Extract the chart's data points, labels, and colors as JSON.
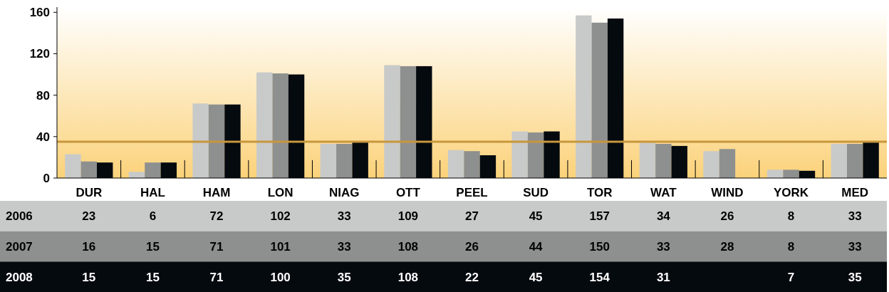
{
  "chart_data": {
    "type": "bar",
    "categories": [
      "DUR",
      "HAL",
      "HAM",
      "LON",
      "NIAG",
      "OTT",
      "PEEL",
      "SUD",
      "TOR",
      "WAT",
      "WIND",
      "YORK",
      "MED"
    ],
    "series": [
      {
        "name": "2006",
        "color": "#c8cac9",
        "values": [
          23,
          6,
          72,
          102,
          33,
          109,
          27,
          45,
          157,
          34,
          26,
          8,
          33
        ]
      },
      {
        "name": "2007",
        "color": "#8e908f",
        "values": [
          16,
          15,
          71,
          101,
          33,
          108,
          26,
          44,
          150,
          33,
          28,
          8,
          33
        ]
      },
      {
        "name": "2008",
        "color": "#050a0f",
        "values": [
          15,
          15,
          71,
          100,
          35,
          108,
          22,
          45,
          154,
          31,
          null,
          7,
          35
        ]
      }
    ],
    "ylim": [
      0,
      165
    ],
    "yticks": [
      0,
      40,
      80,
      120,
      160
    ],
    "data_labels": true,
    "ref_lines": [
      {
        "axis": "y",
        "value": 35,
        "color": "#c8963c"
      }
    ]
  }
}
